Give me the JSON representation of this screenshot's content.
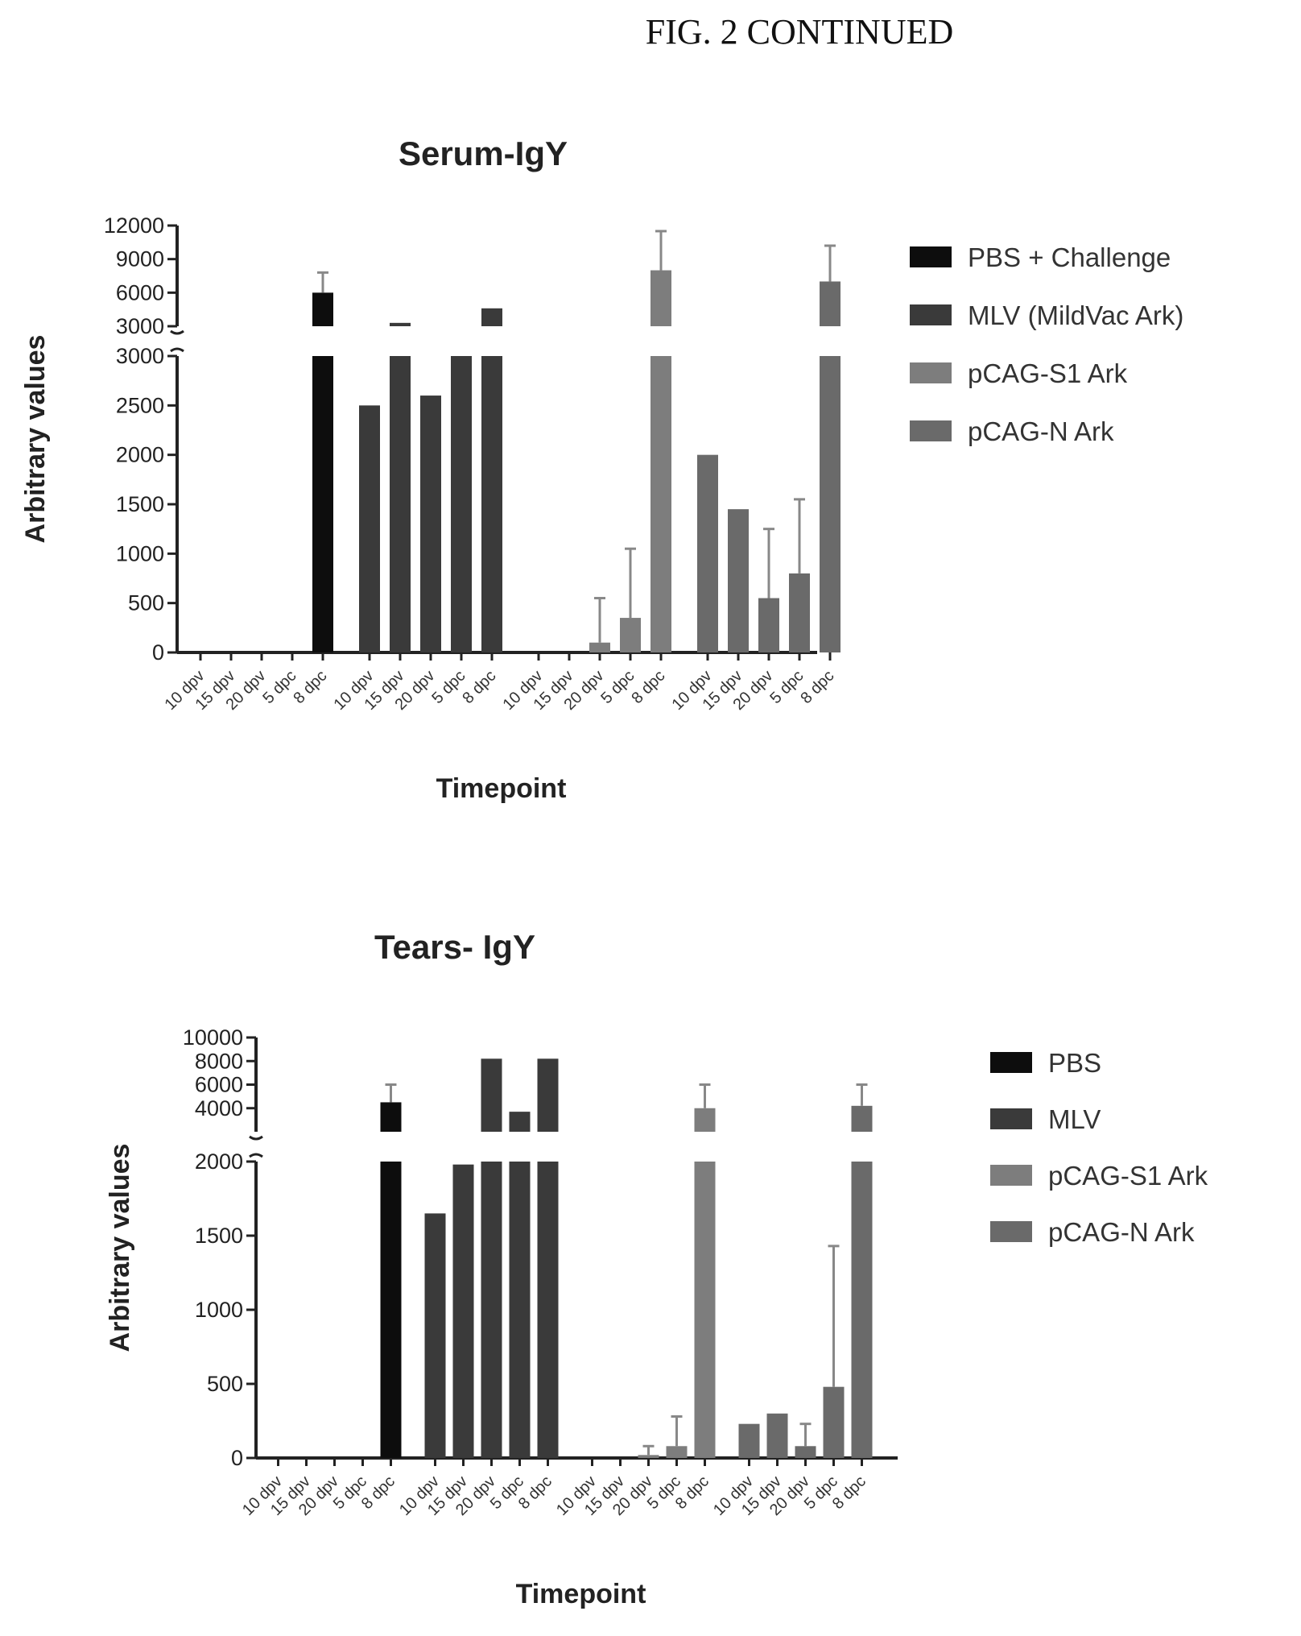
{
  "figure_title": "FIG. 2 CONTINUED",
  "colors": {
    "PBS": "#0d0d0d",
    "MLV": "#3a3a3a",
    "pCAG-S1 Ark": "#7d7d7d",
    "pCAG-N Ark": "#6a6a6a"
  },
  "chart_data": [
    {
      "type": "bar",
      "title": "Serum-IgY",
      "xlabel": "Timepoint",
      "ylabel": "Arbitrary values",
      "axis_break": true,
      "lower_ylim": [
        0,
        3000
      ],
      "lower_ticks": [
        "0",
        "500",
        "1000",
        "1500",
        "2000",
        "2500",
        "3000"
      ],
      "upper_ylim": [
        3000,
        12000
      ],
      "upper_ticks": [
        "3000",
        "6000",
        "9000",
        "12000"
      ],
      "categories": [
        "10 dpv",
        "15 dpv",
        "20 dpv",
        "5 dpc",
        "8 dpc"
      ],
      "legend": [
        "PBS + Challenge",
        "MLV (MildVac Ark)",
        "pCAG-S1 Ark",
        "pCAG-N Ark"
      ],
      "legend_position": "right",
      "series": [
        {
          "name": "PBS + Challenge",
          "values": [
            0,
            0,
            0,
            0,
            6000
          ],
          "errors": [
            0,
            0,
            0,
            0,
            1800
          ]
        },
        {
          "name": "MLV (MildVac Ark)",
          "values": [
            2500,
            3300,
            2600,
            3000,
            4600
          ],
          "errors": [
            0,
            0,
            0,
            0,
            0
          ]
        },
        {
          "name": "pCAG-S1 Ark",
          "values": [
            0,
            0,
            100,
            350,
            8000
          ],
          "errors": [
            0,
            0,
            450,
            700,
            3500
          ]
        },
        {
          "name": "pCAG-N Ark",
          "values": [
            2000,
            1450,
            550,
            800,
            7000
          ],
          "errors": [
            0,
            0,
            700,
            750,
            3200
          ]
        }
      ]
    },
    {
      "type": "bar",
      "title": "Tears- IgY",
      "xlabel": "Timepoint",
      "ylabel": "Arbitrary values",
      "axis_break": true,
      "lower_ylim": [
        0,
        2000
      ],
      "lower_ticks": [
        "0",
        "500",
        "1000",
        "1500",
        "2000"
      ],
      "upper_ylim": [
        2000,
        10000
      ],
      "upper_ticks": [
        "4000",
        "6000",
        "8000",
        "10000"
      ],
      "categories": [
        "10 dpv",
        "15 dpv",
        "20 dpv",
        "5 dpc",
        "8 dpc"
      ],
      "legend": [
        "PBS",
        "MLV",
        "pCAG-S1 Ark",
        "pCAG-N Ark"
      ],
      "legend_position": "right",
      "series": [
        {
          "name": "PBS",
          "values": [
            0,
            0,
            0,
            0,
            4500
          ],
          "errors": [
            0,
            0,
            0,
            0,
            1500
          ]
        },
        {
          "name": "MLV",
          "values": [
            1650,
            1980,
            8200,
            3700,
            8200
          ],
          "errors": [
            0,
            0,
            0,
            0,
            0
          ]
        },
        {
          "name": "pCAG-S1 Ark",
          "values": [
            0,
            0,
            20,
            80,
            4000
          ],
          "errors": [
            0,
            0,
            60,
            200,
            2000
          ]
        },
        {
          "name": "pCAG-N Ark",
          "values": [
            230,
            300,
            80,
            480,
            4200
          ],
          "errors": [
            0,
            0,
            150,
            950,
            1800
          ]
        }
      ]
    }
  ]
}
